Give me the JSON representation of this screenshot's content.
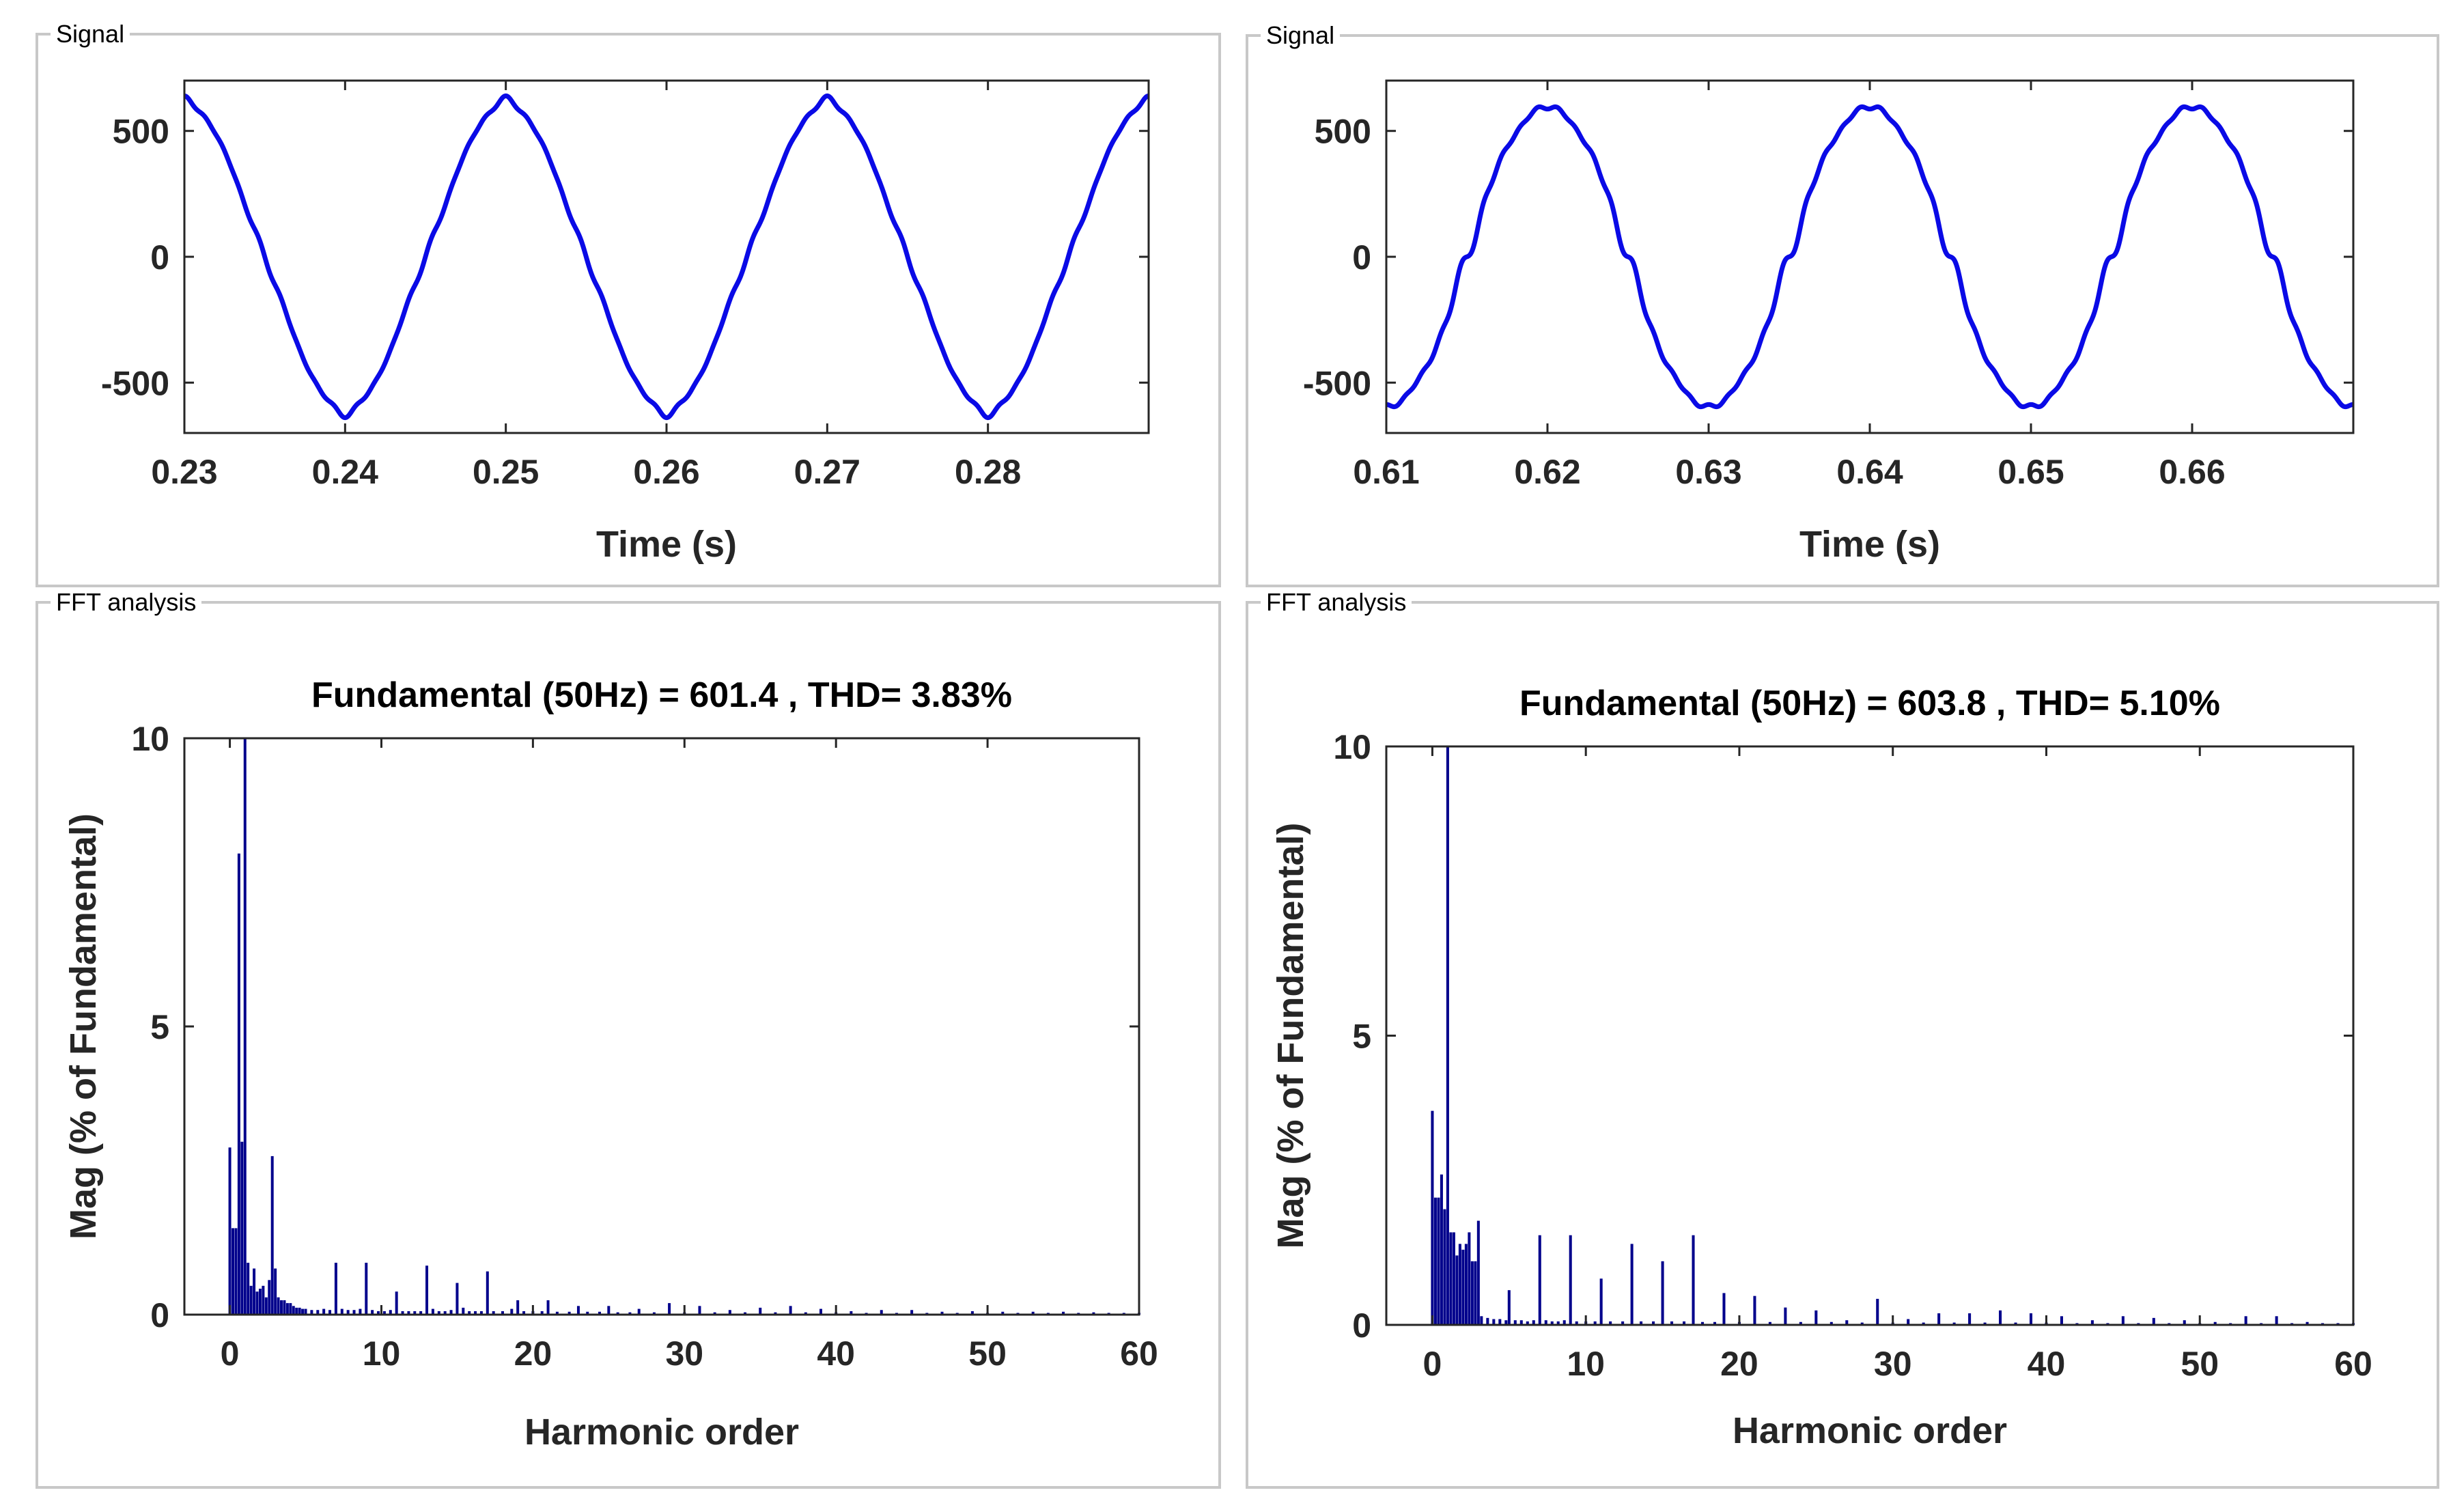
{
  "panels": [
    {
      "id": "p1",
      "title": "Signal"
    },
    {
      "id": "p2",
      "title": "Signal"
    },
    {
      "id": "p3",
      "title": "FFT analysis"
    },
    {
      "id": "p4",
      "title": "FFT analysis"
    }
  ],
  "colors": {
    "signal": "#0a0ae6",
    "bar": "#00008c",
    "axis": "#262626",
    "panel_border": "#c8c8c8"
  },
  "chart_data": [
    {
      "id": "sig1",
      "type": "line",
      "title": "",
      "xlabel": "Time (s)",
      "ylabel": "",
      "xlim": [
        0.23,
        0.29
      ],
      "ylim": [
        -700,
        700
      ],
      "xticks": [
        0.23,
        0.24,
        0.25,
        0.26,
        0.27,
        0.28
      ],
      "xticklabels": [
        "0.23",
        "0.24",
        "0.25",
        "0.26",
        "0.27",
        "0.28"
      ],
      "yticks": [
        -500,
        0,
        500
      ],
      "yticklabels": [
        "-500",
        "0",
        "500"
      ],
      "series": [
        {
          "name": "signal",
          "amplitude": 601.4,
          "frequency_hz": 50,
          "peak_time_s": 0.25,
          "harmonics": [
            {
              "order": 3,
              "rel_amp": 0.028,
              "phase": 0.0
            },
            {
              "order": 7,
              "rel_amp": 0.009,
              "phase": 0.0
            },
            {
              "order": 9,
              "rel_amp": 0.009,
              "phase": 0.0
            },
            {
              "order": 13,
              "rel_amp": 0.009,
              "phase": 0.0
            },
            {
              "order": 17,
              "rel_amp": 0.008,
              "phase": 0.0
            }
          ],
          "t_start": 0.23,
          "t_end": 0.29
        }
      ]
    },
    {
      "id": "sig2",
      "type": "line",
      "title": "",
      "xlabel": "Time (s)",
      "ylabel": "",
      "xlim": [
        0.61,
        0.67
      ],
      "ylim": [
        -700,
        700
      ],
      "xticks": [
        0.61,
        0.62,
        0.63,
        0.64,
        0.65,
        0.66
      ],
      "xticklabels": [
        "0.61",
        "0.62",
        "0.63",
        "0.64",
        "0.65",
        "0.66"
      ],
      "yticks": [
        -500,
        0,
        500
      ],
      "yticklabels": [
        "-500",
        "0",
        "500"
      ],
      "series": [
        {
          "name": "signal",
          "amplitude": 603.8,
          "frequency_hz": 50,
          "peak_time_s": 0.64,
          "harmonics": [
            {
              "order": 3,
              "rel_amp": 0.018,
              "phase": 3.14
            },
            {
              "order": 7,
              "rel_amp": 0.015,
              "phase": 0.0
            },
            {
              "order": 9,
              "rel_amp": 0.015,
              "phase": 3.14
            },
            {
              "order": 11,
              "rel_amp": 0.008,
              "phase": 0.0
            },
            {
              "order": 13,
              "rel_amp": 0.014,
              "phase": 3.14
            },
            {
              "order": 15,
              "rel_amp": 0.011,
              "phase": 0.0
            },
            {
              "order": 17,
              "rel_amp": 0.015,
              "phase": 3.14
            }
          ],
          "t_start": 0.61,
          "t_end": 0.67
        }
      ]
    },
    {
      "id": "fft1",
      "type": "bar",
      "title": "Fundamental (50Hz) = 601.4 , THD= 3.83%",
      "xlabel": "Harmonic order",
      "ylabel": "Mag (% of Fundamental)",
      "xlim": [
        -3,
        60
      ],
      "ylim": [
        0,
        10
      ],
      "xticks": [
        0,
        10,
        20,
        30,
        40,
        50,
        60
      ],
      "xticklabels": [
        "0",
        "10",
        "20",
        "30",
        "40",
        "50",
        "60"
      ],
      "yticks": [
        0,
        5,
        10
      ],
      "yticklabels": [
        "0",
        "5",
        "10"
      ],
      "bar_width": 0.18,
      "bars": [
        [
          0,
          2.9
        ],
        [
          0.2,
          1.5
        ],
        [
          0.4,
          1.5
        ],
        [
          0.6,
          8.0
        ],
        [
          0.8,
          3.0
        ],
        [
          1,
          10
        ],
        [
          1.2,
          0.9
        ],
        [
          1.4,
          0.5
        ],
        [
          1.6,
          0.8
        ],
        [
          1.8,
          0.4
        ],
        [
          2,
          0.45
        ],
        [
          2.2,
          0.5
        ],
        [
          2.4,
          0.3
        ],
        [
          2.6,
          0.6
        ],
        [
          2.8,
          2.75
        ],
        [
          3,
          0.8
        ],
        [
          3.2,
          0.3
        ],
        [
          3.4,
          0.25
        ],
        [
          3.6,
          0.25
        ],
        [
          3.8,
          0.2
        ],
        [
          4,
          0.2
        ],
        [
          4.2,
          0.15
        ],
        [
          4.4,
          0.12
        ],
        [
          4.6,
          0.12
        ],
        [
          4.8,
          0.1
        ],
        [
          5,
          0.1
        ],
        [
          5.4,
          0.08
        ],
        [
          5.8,
          0.08
        ],
        [
          6.2,
          0.1
        ],
        [
          6.6,
          0.08
        ],
        [
          7,
          0.9
        ],
        [
          7.4,
          0.1
        ],
        [
          7.8,
          0.08
        ],
        [
          8.2,
          0.08
        ],
        [
          8.6,
          0.1
        ],
        [
          9,
          0.9
        ],
        [
          9.4,
          0.08
        ],
        [
          9.8,
          0.06
        ],
        [
          10.2,
          0.06
        ],
        [
          10.6,
          0.08
        ],
        [
          11,
          0.4
        ],
        [
          11.4,
          0.06
        ],
        [
          11.8,
          0.06
        ],
        [
          12.2,
          0.06
        ],
        [
          12.6,
          0.06
        ],
        [
          13,
          0.85
        ],
        [
          13.4,
          0.1
        ],
        [
          13.8,
          0.06
        ],
        [
          14.2,
          0.06
        ],
        [
          14.6,
          0.08
        ],
        [
          15,
          0.55
        ],
        [
          15.4,
          0.12
        ],
        [
          15.8,
          0.06
        ],
        [
          16.2,
          0.06
        ],
        [
          16.6,
          0.06
        ],
        [
          17,
          0.75
        ],
        [
          17.4,
          0.06
        ],
        [
          18,
          0.06
        ],
        [
          18.6,
          0.1
        ],
        [
          19,
          0.25
        ],
        [
          19.4,
          0.06
        ],
        [
          20,
          0.06
        ],
        [
          20.6,
          0.06
        ],
        [
          21,
          0.25
        ],
        [
          21.6,
          0.05
        ],
        [
          22.4,
          0.05
        ],
        [
          23,
          0.15
        ],
        [
          23.6,
          0.05
        ],
        [
          24.4,
          0.05
        ],
        [
          25,
          0.15
        ],
        [
          25.6,
          0.04
        ],
        [
          26.4,
          0.04
        ],
        [
          27,
          0.1
        ],
        [
          28,
          0.04
        ],
        [
          29,
          0.2
        ],
        [
          30,
          0.04
        ],
        [
          31,
          0.15
        ],
        [
          32,
          0.04
        ],
        [
          33,
          0.08
        ],
        [
          34,
          0.04
        ],
        [
          35,
          0.12
        ],
        [
          36,
          0.04
        ],
        [
          37,
          0.15
        ],
        [
          38,
          0.04
        ],
        [
          39,
          0.1
        ],
        [
          40,
          0.04
        ],
        [
          41,
          0.06
        ],
        [
          42,
          0.03
        ],
        [
          43,
          0.08
        ],
        [
          44,
          0.03
        ],
        [
          45,
          0.08
        ],
        [
          46,
          0.03
        ],
        [
          47,
          0.05
        ],
        [
          48,
          0.03
        ],
        [
          49,
          0.06
        ],
        [
          50,
          0.03
        ],
        [
          51,
          0.05
        ],
        [
          52,
          0.03
        ],
        [
          53,
          0.05
        ],
        [
          54,
          0.03
        ],
        [
          55,
          0.05
        ],
        [
          56,
          0.03
        ],
        [
          57,
          0.04
        ],
        [
          58,
          0.03
        ],
        [
          59,
          0.03
        ],
        [
          60,
          0.03
        ]
      ]
    },
    {
      "id": "fft2",
      "type": "bar",
      "title": "Fundamental (50Hz) = 603.8 , THD= 5.10%",
      "xlabel": "Harmonic order",
      "ylabel": "Mag (% of Fundamental)",
      "xlim": [
        -3,
        60
      ],
      "ylim": [
        0,
        10
      ],
      "xticks": [
        0,
        10,
        20,
        30,
        40,
        50,
        60
      ],
      "xticklabels": [
        "0",
        "10",
        "20",
        "30",
        "40",
        "50",
        "60"
      ],
      "yticks": [
        0,
        5,
        10
      ],
      "yticklabels": [
        "0",
        "5",
        "10"
      ],
      "bar_width": 0.18,
      "bars": [
        [
          0,
          3.7
        ],
        [
          0.2,
          2.2
        ],
        [
          0.4,
          2.2
        ],
        [
          0.6,
          2.6
        ],
        [
          0.8,
          2.0
        ],
        [
          1,
          10
        ],
        [
          1.2,
          1.6
        ],
        [
          1.4,
          1.6
        ],
        [
          1.6,
          1.2
        ],
        [
          1.8,
          1.4
        ],
        [
          2,
          1.3
        ],
        [
          2.2,
          1.4
        ],
        [
          2.4,
          1.6
        ],
        [
          2.6,
          1.1
        ],
        [
          2.8,
          1.1
        ],
        [
          3,
          1.8
        ],
        [
          3.2,
          0.15
        ],
        [
          3.6,
          0.12
        ],
        [
          4,
          0.1
        ],
        [
          4.4,
          0.1
        ],
        [
          4.8,
          0.08
        ],
        [
          5,
          0.6
        ],
        [
          5.4,
          0.08
        ],
        [
          5.8,
          0.08
        ],
        [
          6.2,
          0.06
        ],
        [
          6.6,
          0.08
        ],
        [
          7,
          1.55
        ],
        [
          7.4,
          0.08
        ],
        [
          7.8,
          0.06
        ],
        [
          8.2,
          0.06
        ],
        [
          8.6,
          0.08
        ],
        [
          9,
          1.55
        ],
        [
          9.4,
          0.06
        ],
        [
          10,
          0.06
        ],
        [
          10.6,
          0.06
        ],
        [
          11,
          0.8
        ],
        [
          11.6,
          0.06
        ],
        [
          12.4,
          0.06
        ],
        [
          13,
          1.4
        ],
        [
          13.6,
          0.06
        ],
        [
          14.4,
          0.06
        ],
        [
          15,
          1.1
        ],
        [
          15.6,
          0.06
        ],
        [
          16.4,
          0.06
        ],
        [
          17,
          1.55
        ],
        [
          17.6,
          0.05
        ],
        [
          18.4,
          0.05
        ],
        [
          19,
          0.55
        ],
        [
          20,
          0.05
        ],
        [
          21,
          0.5
        ],
        [
          22,
          0.05
        ],
        [
          23,
          0.3
        ],
        [
          24,
          0.05
        ],
        [
          25,
          0.25
        ],
        [
          26,
          0.05
        ],
        [
          27,
          0.08
        ],
        [
          28,
          0.04
        ],
        [
          29,
          0.45
        ],
        [
          30,
          0.04
        ],
        [
          31,
          0.1
        ],
        [
          32,
          0.04
        ],
        [
          33,
          0.2
        ],
        [
          34,
          0.04
        ],
        [
          35,
          0.2
        ],
        [
          36,
          0.04
        ],
        [
          37,
          0.25
        ],
        [
          38,
          0.04
        ],
        [
          39,
          0.2
        ],
        [
          40,
          0.04
        ],
        [
          41,
          0.15
        ],
        [
          42,
          0.03
        ],
        [
          43,
          0.08
        ],
        [
          44,
          0.03
        ],
        [
          45,
          0.15
        ],
        [
          46,
          0.03
        ],
        [
          47,
          0.12
        ],
        [
          48,
          0.03
        ],
        [
          49,
          0.08
        ],
        [
          50,
          0.03
        ],
        [
          51,
          0.05
        ],
        [
          52,
          0.03
        ],
        [
          53,
          0.15
        ],
        [
          54,
          0.03
        ],
        [
          55,
          0.15
        ],
        [
          56,
          0.03
        ],
        [
          57,
          0.05
        ],
        [
          58,
          0.03
        ],
        [
          59,
          0.03
        ],
        [
          60,
          0.03
        ]
      ]
    }
  ]
}
